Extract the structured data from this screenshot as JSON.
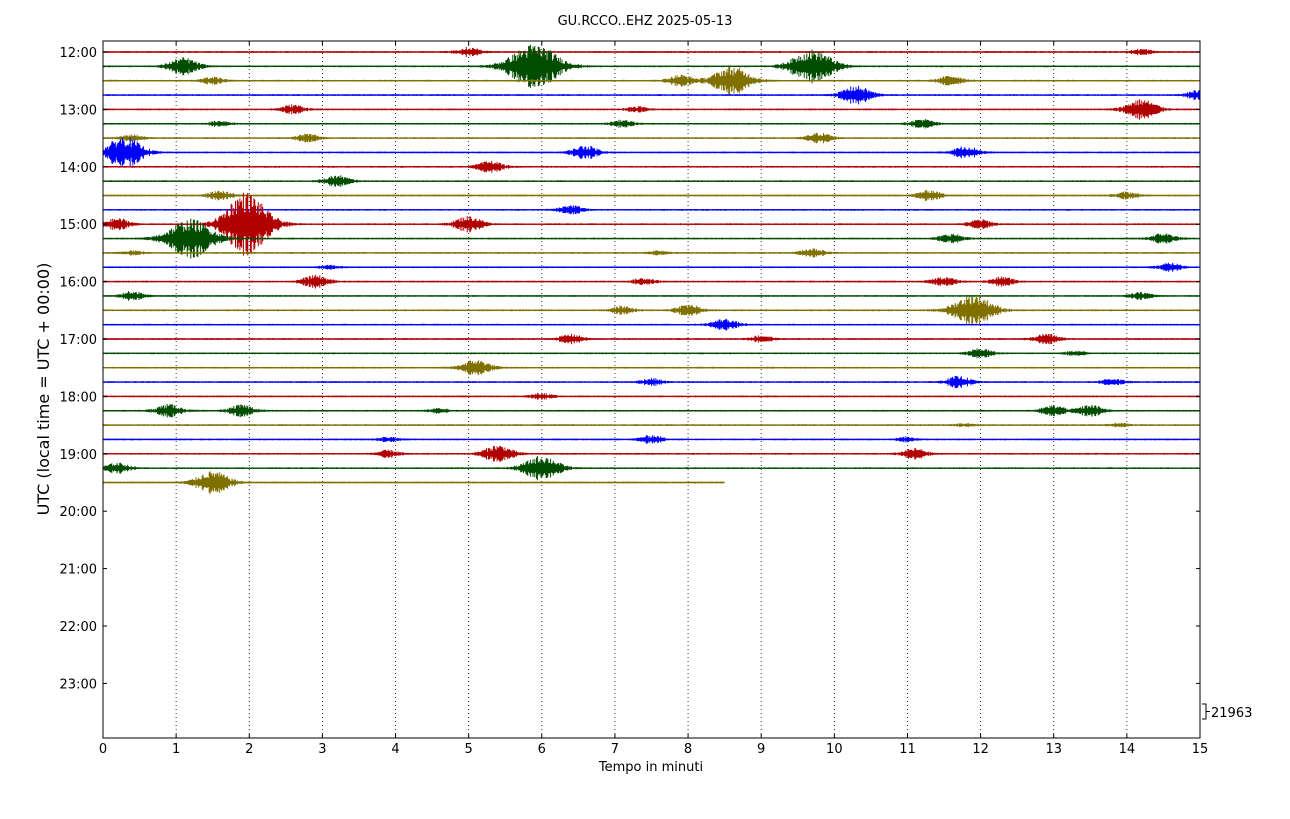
{
  "chart_data": {
    "type": "line",
    "title": "GU.RCCO..EHZ 2025-05-13",
    "xlabel": "Tempo in minuti",
    "ylabel": "UTC (local time = UTC + 00:00)",
    "xlim": [
      0,
      15
    ],
    "x_ticks": [
      "0",
      "1",
      "2",
      "3",
      "4",
      "5",
      "6",
      "7",
      "8",
      "9",
      "10",
      "11",
      "12",
      "13",
      "14",
      "15"
    ],
    "y_ticks": [
      "12:00",
      "13:00",
      "14:00",
      "15:00",
      "16:00",
      "17:00",
      "18:00",
      "19:00",
      "20:00",
      "21:00",
      "22:00",
      "23:00"
    ],
    "row_minutes": 15,
    "start_time": "12:00",
    "grid": "vertical-dotted",
    "scale_label": "21963",
    "series_colors": [
      "#b00000",
      "#004d00",
      "#807000",
      "#0000ff"
    ],
    "traces": [
      {
        "start": "12:00",
        "events": [
          [
            5.0,
            0.8
          ],
          [
            14.2,
            0.5
          ]
        ]
      },
      {
        "start": "12:15",
        "events": [
          [
            1.1,
            1.5
          ],
          [
            5.9,
            4.0
          ],
          [
            9.7,
            3.0
          ]
        ]
      },
      {
        "start": "12:30",
        "events": [
          [
            1.5,
            0.6
          ],
          [
            7.9,
            1.0
          ],
          [
            8.6,
            2.5
          ],
          [
            11.6,
            0.9
          ]
        ]
      },
      {
        "start": "12:45",
        "events": [
          [
            10.3,
            1.6
          ],
          [
            15.0,
            1.0
          ]
        ]
      },
      {
        "start": "13:00",
        "events": [
          [
            2.6,
            0.8
          ],
          [
            7.3,
            0.5
          ],
          [
            14.2,
            1.8
          ]
        ]
      },
      {
        "start": "13:15",
        "events": [
          [
            1.6,
            0.5
          ],
          [
            7.1,
            0.6
          ],
          [
            11.2,
            0.8
          ]
        ]
      },
      {
        "start": "13:30",
        "events": [
          [
            0.4,
            0.6
          ],
          [
            2.8,
            0.7
          ],
          [
            9.8,
            0.9
          ]
        ]
      },
      {
        "start": "13:45",
        "events": [
          [
            0.2,
            1.2
          ],
          [
            0.35,
            2.0
          ],
          [
            6.6,
            1.2
          ],
          [
            11.8,
            1.1
          ]
        ]
      },
      {
        "start": "14:00",
        "events": [
          [
            5.3,
            1.0
          ]
        ]
      },
      {
        "start": "14:15",
        "events": [
          [
            3.2,
            1.0
          ]
        ]
      },
      {
        "start": "14:30",
        "events": [
          [
            1.6,
            0.8
          ],
          [
            11.3,
            0.9
          ],
          [
            14.0,
            0.6
          ]
        ]
      },
      {
        "start": "14:45",
        "events": [
          [
            6.4,
            0.8
          ]
        ]
      },
      {
        "start": "15:00",
        "events": [
          [
            0.2,
            1.0
          ],
          [
            1.9,
            2.5
          ],
          [
            2.0,
            3.5
          ],
          [
            5.0,
            1.4
          ],
          [
            12.0,
            0.8
          ]
        ]
      },
      {
        "start": "15:15",
        "events": [
          [
            1.2,
            3.5
          ],
          [
            11.6,
            0.8
          ],
          [
            14.5,
            0.9
          ]
        ]
      },
      {
        "start": "15:30",
        "events": [
          [
            0.4,
            0.4
          ],
          [
            7.6,
            0.4
          ],
          [
            9.7,
            0.8
          ]
        ]
      },
      {
        "start": "15:45",
        "events": [
          [
            3.1,
            0.3
          ],
          [
            14.6,
            0.7
          ]
        ]
      },
      {
        "start": "16:00",
        "events": [
          [
            2.9,
            1.1
          ],
          [
            7.4,
            0.6
          ],
          [
            11.5,
            0.8
          ],
          [
            12.3,
            0.8
          ]
        ]
      },
      {
        "start": "16:15",
        "events": [
          [
            0.4,
            0.8
          ],
          [
            14.2,
            0.6
          ]
        ]
      },
      {
        "start": "16:30",
        "events": [
          [
            7.1,
            0.7
          ],
          [
            8.0,
            1.0
          ],
          [
            11.9,
            2.8
          ]
        ]
      },
      {
        "start": "16:45",
        "events": [
          [
            8.5,
            1.0
          ]
        ]
      },
      {
        "start": "17:00",
        "events": [
          [
            6.4,
            0.8
          ],
          [
            9.0,
            0.6
          ],
          [
            12.9,
            0.9
          ]
        ]
      },
      {
        "start": "17:15",
        "events": [
          [
            12.0,
            0.8
          ],
          [
            13.3,
            0.4
          ]
        ]
      },
      {
        "start": "17:30",
        "events": [
          [
            5.1,
            1.4
          ]
        ]
      },
      {
        "start": "17:45",
        "events": [
          [
            7.5,
            0.6
          ],
          [
            11.7,
            1.0
          ],
          [
            13.8,
            0.6
          ]
        ]
      },
      {
        "start": "18:00",
        "events": [
          [
            6.0,
            0.5
          ]
        ]
      },
      {
        "start": "18:15",
        "events": [
          [
            0.9,
            1.1
          ],
          [
            1.9,
            1.0
          ],
          [
            4.6,
            0.4
          ],
          [
            13.0,
            0.9
          ],
          [
            13.5,
            1.0
          ]
        ]
      },
      {
        "start": "18:30",
        "events": [
          [
            11.8,
            0.3
          ],
          [
            13.9,
            0.3
          ]
        ]
      },
      {
        "start": "18:45",
        "events": [
          [
            3.9,
            0.4
          ],
          [
            7.5,
            0.7
          ],
          [
            11.0,
            0.4
          ]
        ]
      },
      {
        "start": "19:00",
        "events": [
          [
            3.9,
            0.6
          ],
          [
            5.4,
            1.5
          ],
          [
            11.1,
            0.9
          ]
        ]
      },
      {
        "start": "19:15",
        "events": [
          [
            0.2,
            0.9
          ],
          [
            6.0,
            2.2
          ]
        ]
      },
      {
        "start": "19:30",
        "end_minute": 8.5,
        "events": [
          [
            1.5,
            2.0
          ]
        ]
      }
    ]
  }
}
